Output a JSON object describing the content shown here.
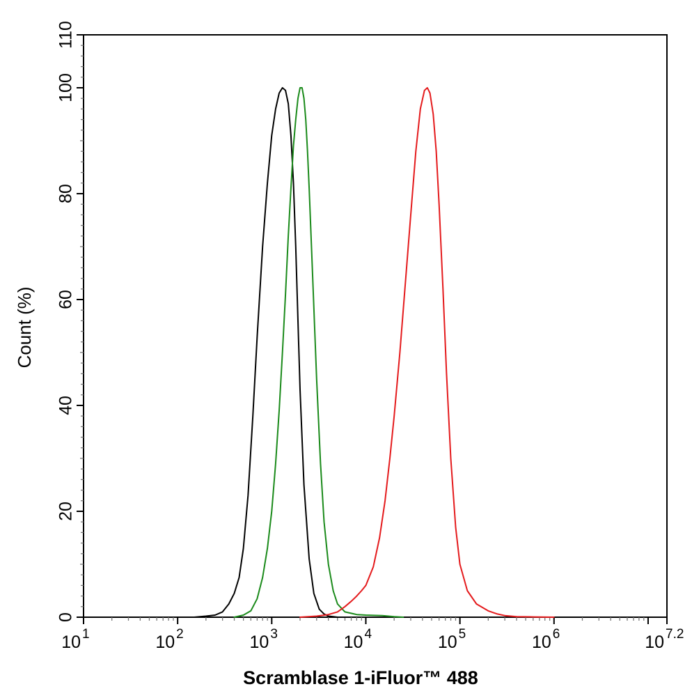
{
  "chart_data": {
    "type": "line",
    "title": "",
    "xlabel": "Scramblase 1-iFluor™ 488",
    "ylabel": "Count  (%)",
    "xscale": "log10",
    "xlim_exponent": [
      1,
      7.2
    ],
    "ylim": [
      0,
      110
    ],
    "grid": false,
    "legend": "none",
    "x_ticks": [
      {
        "base": "10",
        "exp": "1"
      },
      {
        "base": "10",
        "exp": "2"
      },
      {
        "base": "10",
        "exp": "3"
      },
      {
        "base": "10",
        "exp": "4"
      },
      {
        "base": "10",
        "exp": "5"
      },
      {
        "base": "10",
        "exp": "6"
      },
      {
        "base": "10",
        "exp": "7.2"
      }
    ],
    "y_ticks": [
      "0",
      "20",
      "40",
      "60",
      "80",
      "100",
      "110"
    ],
    "series": [
      {
        "color": "#000000",
        "x": [
          150,
          200,
          250,
          300,
          350,
          400,
          450,
          500,
          560,
          630,
          700,
          800,
          900,
          1000,
          1100,
          1200,
          1300,
          1400,
          1500,
          1600,
          1700,
          1800,
          1900,
          2000,
          2200,
          2500,
          2800,
          3200,
          3600,
          4000,
          4500,
          5000,
          6000
        ],
        "y": [
          0,
          0.2,
          0.4,
          1.0,
          2.5,
          4.5,
          7.5,
          13,
          23,
          38,
          53,
          70,
          82,
          91,
          96,
          99,
          100,
          99.5,
          97,
          91,
          82,
          70,
          56,
          43,
          25,
          11,
          4.5,
          1.5,
          0.6,
          0.2,
          0.1,
          0,
          0
        ]
      },
      {
        "color": "#1a8a1a",
        "x": [
          400,
          500,
          600,
          700,
          800,
          900,
          1000,
          1100,
          1200,
          1300,
          1400,
          1500,
          1600,
          1700,
          1800,
          1900,
          2000,
          2100,
          2200,
          2300,
          2400,
          2500,
          2700,
          3000,
          3300,
          3600,
          4000,
          4500,
          5000,
          6000,
          8000,
          10000,
          15000,
          20000,
          25000
        ],
        "y": [
          0,
          0.4,
          1.2,
          3.5,
          7.5,
          13,
          20,
          29,
          39,
          50,
          61,
          72,
          81,
          89,
          94,
          98,
          100,
          100,
          98,
          94,
          88,
          81,
          66,
          45,
          29,
          18,
          10,
          5,
          2.5,
          1.0,
          0.5,
          0.4,
          0.3,
          0.1,
          0
        ]
      },
      {
        "color": "#e41a1c",
        "x": [
          2000,
          3000,
          4000,
          5000,
          6000,
          7000,
          8000,
          9000,
          10000,
          12000,
          14000,
          16000,
          18000,
          20000,
          23000,
          26000,
          30000,
          34000,
          38000,
          42000,
          45000,
          48000,
          52000,
          56000,
          60000,
          66000,
          72000,
          80000,
          90000,
          100000,
          120000,
          150000,
          200000,
          250000,
          300000,
          400000,
          600000,
          1000000
        ],
        "y": [
          0,
          0.2,
          0.5,
          1.0,
          2.0,
          3.0,
          4.0,
          5.0,
          6.0,
          9.5,
          15,
          22,
          30,
          38,
          50,
          62,
          76,
          88,
          96,
          99.5,
          100,
          99,
          95,
          88,
          78,
          62,
          46,
          30,
          17,
          10,
          5,
          2.5,
          1.2,
          0.6,
          0.3,
          0.1,
          0.05,
          0
        ]
      }
    ]
  }
}
